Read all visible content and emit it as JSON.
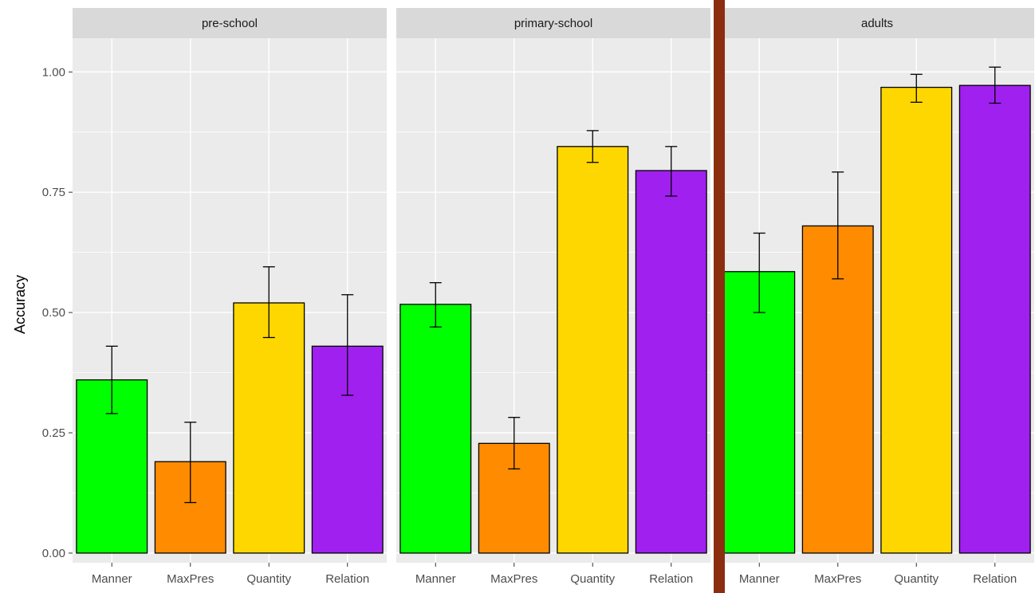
{
  "chart_data": {
    "type": "bar",
    "ylabel": "Accuracy",
    "xlabel": "",
    "ylim": [
      -0.02,
      1.07
    ],
    "yticks": [
      0.0,
      0.25,
      0.5,
      0.75,
      1.0
    ],
    "ytick_labels": [
      "0.00",
      "0.25",
      "0.50",
      "0.75",
      "1.00"
    ],
    "categories": [
      "Manner",
      "MaxPres",
      "Quantity",
      "Relation"
    ],
    "category_colors": [
      "#00ff00",
      "#ff8c00",
      "#ffd700",
      "#a020f0"
    ],
    "panels": [
      {
        "name": "pre-school",
        "values": [
          0.36,
          0.19,
          0.52,
          0.43
        ],
        "error_low": [
          0.29,
          0.105,
          0.448,
          0.328
        ],
        "error_high": [
          0.43,
          0.272,
          0.595,
          0.537
        ]
      },
      {
        "name": "primary-school",
        "values": [
          0.517,
          0.228,
          0.845,
          0.795
        ],
        "error_low": [
          0.47,
          0.175,
          0.812,
          0.742
        ],
        "error_high": [
          0.562,
          0.282,
          0.878,
          0.845
        ]
      },
      {
        "name": "adults",
        "values": [
          0.585,
          0.68,
          0.968,
          0.972
        ],
        "error_low": [
          0.5,
          0.57,
          0.937,
          0.935
        ],
        "error_high": [
          0.665,
          0.792,
          0.995,
          1.01
        ]
      }
    ],
    "grid": true,
    "legend": "none",
    "panel_background": "#ebebeb",
    "strip_background": "#d9d9d9",
    "divider_color": "#8b2e0f"
  }
}
